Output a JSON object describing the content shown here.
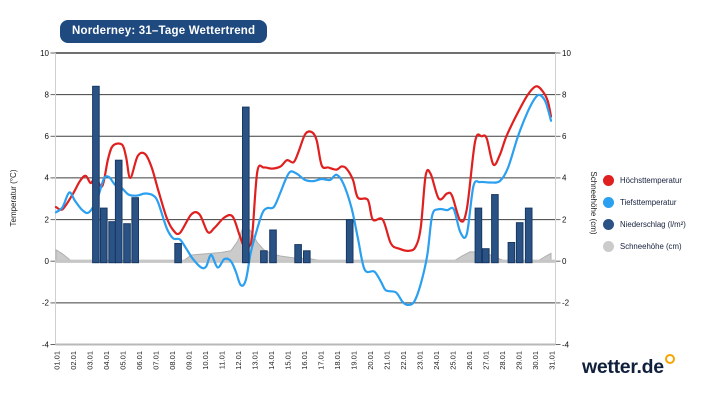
{
  "logo": {
    "text": "wetter.de"
  },
  "chart_data": {
    "type": "line",
    "title": "Norderney: 31–Tage Wettertrend",
    "x_labels": [
      "01.01",
      "02.01",
      "03.01",
      "04.01",
      "05.01",
      "06.01",
      "07.01",
      "08.01",
      "09.01",
      "10.01",
      "11.01",
      "12.01",
      "13.01",
      "14.01",
      "15.01",
      "16.01",
      "17.01",
      "18.01",
      "19.01",
      "20.01",
      "21.01",
      "22.01",
      "23.01",
      "24.01",
      "25.01",
      "26.01",
      "27.01",
      "28.01",
      "29.01",
      "30.01",
      "31.01"
    ],
    "y_axis_left": {
      "label": "Temperatur (°C)",
      "ticks": [
        10,
        8,
        6,
        4,
        2,
        0,
        -2,
        -4
      ],
      "range": [
        -4,
        10
      ]
    },
    "y_axis_right": {
      "label": "Schneehöhe (cm)",
      "ticks": [
        10,
        8,
        6,
        4,
        2,
        0,
        -2,
        -4
      ],
      "range": [
        -4,
        10
      ]
    },
    "grid": true,
    "legend_position": "right",
    "colors": {
      "max_temp": "#e01f1f",
      "min_temp": "#2b9ff0",
      "precipitation": "#2b5285",
      "precipitation_border": "#173862",
      "snow": "#cbcbcb",
      "snow_border": "#b0b0b0",
      "accent_navy": "#1e4a80",
      "logo_gold": "#f6a500"
    },
    "series": [
      {
        "name": "Höchsttemperatur",
        "type": "line",
        "color": "#e01f1f",
        "points": [
          [
            1,
            2.6
          ],
          [
            1.4,
            2.5
          ],
          [
            2,
            3.2
          ],
          [
            2.45,
            3.85
          ],
          [
            2.8,
            4.1
          ],
          [
            3.1,
            3.75
          ],
          [
            3.4,
            4.05
          ],
          [
            3.8,
            3.6
          ],
          [
            4.15,
            4.9
          ],
          [
            4.45,
            5.55
          ],
          [
            5,
            5.6
          ],
          [
            5.25,
            5.0
          ],
          [
            5.5,
            4.0
          ],
          [
            5.95,
            5.05
          ],
          [
            6.4,
            5.15
          ],
          [
            6.8,
            4.5
          ],
          [
            7.2,
            3.4
          ],
          [
            7.7,
            2.1
          ],
          [
            8.1,
            1.5
          ],
          [
            8.5,
            1.35
          ],
          [
            9.2,
            2.25
          ],
          [
            9.7,
            2.25
          ],
          [
            10.2,
            1.4
          ],
          [
            10.6,
            1.6
          ],
          [
            11.2,
            2.1
          ],
          [
            11.7,
            2.15
          ],
          [
            12.1,
            1.3
          ],
          [
            12.4,
            0.7
          ],
          [
            12.7,
            0.7
          ],
          [
            12.9,
            1.3
          ],
          [
            13.2,
            4.3
          ],
          [
            13.6,
            4.5
          ],
          [
            14.1,
            4.45
          ],
          [
            14.6,
            4.55
          ],
          [
            15,
            4.85
          ],
          [
            15.4,
            4.75
          ],
          [
            15.7,
            5.25
          ],
          [
            16.1,
            6.1
          ],
          [
            16.5,
            6.2
          ],
          [
            16.8,
            5.8
          ],
          [
            17.1,
            4.6
          ],
          [
            17.5,
            4.5
          ],
          [
            18,
            4.4
          ],
          [
            18.3,
            4.55
          ],
          [
            18.6,
            4.45
          ],
          [
            19,
            3.9
          ],
          [
            19.3,
            3.05
          ],
          [
            19.9,
            2.95
          ],
          [
            20.2,
            2.0
          ],
          [
            20.8,
            2.0
          ],
          [
            21.3,
            0.85
          ],
          [
            21.8,
            0.6
          ],
          [
            22.4,
            0.5
          ],
          [
            22.8,
            0.7
          ],
          [
            23.1,
            1.6
          ],
          [
            23.4,
            4.1
          ],
          [
            23.7,
            4.2
          ],
          [
            24.2,
            3.0
          ],
          [
            24.7,
            3.25
          ],
          [
            25,
            3.15
          ],
          [
            25.5,
            1.95
          ],
          [
            25.9,
            2.5
          ],
          [
            26.4,
            5.75
          ],
          [
            26.8,
            6.0
          ],
          [
            27.1,
            5.9
          ],
          [
            27.5,
            4.65
          ],
          [
            27.9,
            5.1
          ],
          [
            28.3,
            6.0
          ],
          [
            29,
            7.15
          ],
          [
            29.6,
            8.0
          ],
          [
            30.1,
            8.4
          ],
          [
            30.5,
            8.15
          ],
          [
            30.8,
            7.7
          ],
          [
            31,
            6.95
          ]
        ]
      },
      {
        "name": "Tiefsttemperatur",
        "type": "line",
        "color": "#2b9ff0",
        "points": [
          [
            1,
            2.35
          ],
          [
            1.4,
            2.6
          ],
          [
            1.8,
            3.3
          ],
          [
            2.15,
            2.9
          ],
          [
            2.6,
            2.45
          ],
          [
            3,
            2.35
          ],
          [
            3.5,
            3.0
          ],
          [
            3.9,
            3.95
          ],
          [
            4.2,
            4.05
          ],
          [
            4.6,
            3.65
          ],
          [
            5,
            3.5
          ],
          [
            5.4,
            3.2
          ],
          [
            5.9,
            3.15
          ],
          [
            6.4,
            3.25
          ],
          [
            6.9,
            3.15
          ],
          [
            7.2,
            2.8
          ],
          [
            7.7,
            1.6
          ],
          [
            8.1,
            1.1
          ],
          [
            8.5,
            1.05
          ],
          [
            8.9,
            0.6
          ],
          [
            9.3,
            0.1
          ],
          [
            9.8,
            -0.3
          ],
          [
            10.1,
            -0.25
          ],
          [
            10.4,
            0.3
          ],
          [
            10.8,
            -0.3
          ],
          [
            11.2,
            0.1
          ],
          [
            11.6,
            0.0
          ],
          [
            11.9,
            -0.5
          ],
          [
            12.2,
            -1.15
          ],
          [
            12.5,
            -0.9
          ],
          [
            12.8,
            0.4
          ],
          [
            13.1,
            1.3
          ],
          [
            13.5,
            2.3
          ],
          [
            13.8,
            2.55
          ],
          [
            14.2,
            2.6
          ],
          [
            14.6,
            3.3
          ],
          [
            14.9,
            3.9
          ],
          [
            15.2,
            4.3
          ],
          [
            15.6,
            4.2
          ],
          [
            16.1,
            3.9
          ],
          [
            16.6,
            3.85
          ],
          [
            17.1,
            3.95
          ],
          [
            17.6,
            3.9
          ],
          [
            18,
            4.15
          ],
          [
            18.4,
            3.75
          ],
          [
            18.9,
            2.6
          ],
          [
            19.3,
            1.1
          ],
          [
            19.7,
            -0.4
          ],
          [
            20.3,
            -0.5
          ],
          [
            20.7,
            -1.0
          ],
          [
            21,
            -1.4
          ],
          [
            21.6,
            -1.5
          ],
          [
            22,
            -1.95
          ],
          [
            22.3,
            -2.1
          ],
          [
            22.7,
            -1.95
          ],
          [
            23.1,
            -1.1
          ],
          [
            23.5,
            0.3
          ],
          [
            23.8,
            2.2
          ],
          [
            24.2,
            2.5
          ],
          [
            24.7,
            2.45
          ],
          [
            25.1,
            2.5
          ],
          [
            25.5,
            1.4
          ],
          [
            25.9,
            1.3
          ],
          [
            26.3,
            3.6
          ],
          [
            26.7,
            3.8
          ],
          [
            27.3,
            3.78
          ],
          [
            27.9,
            3.85
          ],
          [
            28.4,
            4.5
          ],
          [
            29,
            6.0
          ],
          [
            29.6,
            7.2
          ],
          [
            30.1,
            7.9
          ],
          [
            30.4,
            7.95
          ],
          [
            30.7,
            7.6
          ],
          [
            31,
            6.75
          ]
        ]
      },
      {
        "name": "Niederschlag (l/m²)",
        "type": "bar",
        "color": "#2b5285",
        "points": [
          [
            3.42,
            8.4
          ],
          [
            3.9,
            2.55
          ],
          [
            4.4,
            1.9
          ],
          [
            4.8,
            4.85
          ],
          [
            5.3,
            1.8
          ],
          [
            5.8,
            3.05
          ],
          [
            8.4,
            0.85
          ],
          [
            12.5,
            7.4
          ],
          [
            13.6,
            0.5
          ],
          [
            14.15,
            1.5
          ],
          [
            15.67,
            0.8
          ],
          [
            16.2,
            0.5
          ],
          [
            18.8,
            2.0
          ],
          [
            26.6,
            2.55
          ],
          [
            27.05,
            0.6
          ],
          [
            27.6,
            3.2
          ],
          [
            28.6,
            0.9
          ],
          [
            29.1,
            1.85
          ],
          [
            29.65,
            2.55
          ]
        ]
      },
      {
        "name": "Schneehöhe (cm)",
        "type": "area",
        "color": "#cbcbcb",
        "points": [
          [
            1,
            0.55
          ],
          [
            1.4,
            0.35
          ],
          [
            1.9,
            0.03
          ],
          [
            2.2,
            0
          ],
          [
            8.7,
            0
          ],
          [
            9.2,
            0.3
          ],
          [
            10,
            0.35
          ],
          [
            11,
            0.42
          ],
          [
            11.6,
            0.5
          ],
          [
            12,
            0.95
          ],
          [
            12.4,
            1.75
          ],
          [
            12.8,
            1.45
          ],
          [
            13.2,
            0.9
          ],
          [
            13.6,
            0.55
          ],
          [
            14.1,
            0.35
          ],
          [
            14.6,
            0.25
          ],
          [
            15.5,
            0.15
          ],
          [
            16.4,
            0.12
          ],
          [
            17,
            0.03
          ],
          [
            17.4,
            0
          ],
          [
            25.1,
            0
          ],
          [
            25.6,
            0.25
          ],
          [
            26.1,
            0.45
          ],
          [
            26.9,
            0.42
          ],
          [
            27.4,
            0.28
          ],
          [
            27.9,
            0.1
          ],
          [
            28.3,
            0
          ],
          [
            30.2,
            0
          ],
          [
            30.7,
            0.25
          ],
          [
            31,
            0.38
          ]
        ]
      }
    ]
  }
}
